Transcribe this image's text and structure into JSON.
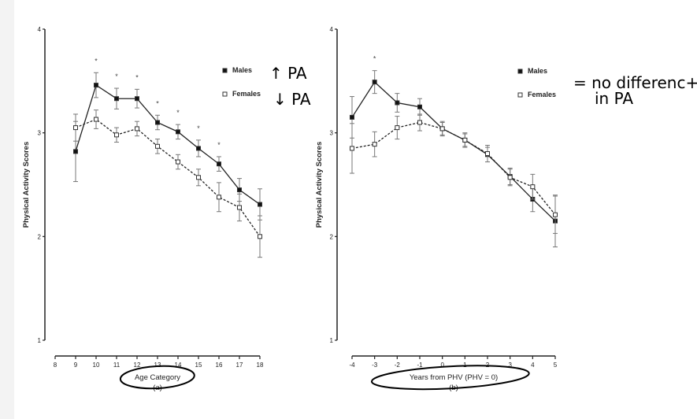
{
  "chart_data": [
    {
      "type": "line",
      "panel_label": "(a)",
      "xlabel": "Age Category",
      "ylabel": "Physical Activity Scores",
      "xlim": [
        8,
        18
      ],
      "ylim": [
        1,
        4
      ],
      "xticks": [
        8,
        9,
        10,
        11,
        12,
        13,
        14,
        15,
        16,
        17,
        18
      ],
      "yticks": [
        1,
        2,
        3,
        4
      ],
      "grid": false,
      "legend_position": "top-right",
      "x": [
        9,
        10,
        11,
        12,
        13,
        14,
        15,
        16,
        17,
        18
      ],
      "series": [
        {
          "name": "Males",
          "marker": "filled-square",
          "line": "solid",
          "values": [
            2.82,
            3.46,
            3.33,
            3.33,
            3.1,
            3.01,
            2.85,
            2.7,
            2.45,
            2.31
          ],
          "error": [
            0.29,
            0.12,
            0.1,
            0.09,
            0.07,
            0.07,
            0.08,
            0.07,
            0.11,
            0.15
          ]
        },
        {
          "name": "Females",
          "marker": "open-square",
          "line": "dashed",
          "values": [
            3.05,
            3.13,
            2.98,
            3.04,
            2.87,
            2.72,
            2.57,
            2.38,
            2.28,
            2.0
          ],
          "error": [
            0.13,
            0.09,
            0.07,
            0.07,
            0.07,
            0.07,
            0.08,
            0.14,
            0.13,
            0.2
          ]
        }
      ],
      "significance_marker": "*",
      "significant_x": [
        10,
        11,
        12,
        13,
        14,
        15,
        16
      ],
      "annotations": {
        "males": "↑ PA",
        "females": "↓ PA"
      }
    },
    {
      "type": "line",
      "panel_label": "(b)",
      "xlabel": "Years from PHV (PHV = 0)",
      "ylabel": "Physical Activity Scores",
      "xlim": [
        -4,
        5
      ],
      "ylim": [
        1,
        4
      ],
      "xticks": [
        -4,
        -3,
        -2,
        -1,
        0,
        1,
        2,
        3,
        4,
        5
      ],
      "yticks": [
        1,
        2,
        3,
        4
      ],
      "grid": false,
      "legend_position": "top-right",
      "x": [
        -4,
        -3,
        -2,
        -1,
        0,
        1,
        2,
        3,
        4,
        5
      ],
      "series": [
        {
          "name": "Males",
          "marker": "filled-square",
          "line": "solid",
          "values": [
            3.15,
            3.49,
            3.29,
            3.25,
            3.04,
            2.93,
            2.79,
            2.58,
            2.36,
            2.15
          ],
          "error": [
            0.2,
            0.11,
            0.09,
            0.08,
            0.07,
            0.07,
            0.07,
            0.08,
            0.12,
            0.25
          ]
        },
        {
          "name": "Females",
          "marker": "open-square",
          "line": "dashed",
          "values": [
            2.85,
            2.89,
            3.05,
            3.1,
            3.04,
            2.93,
            2.8,
            2.57,
            2.48,
            2.21
          ],
          "error": [
            0.24,
            0.12,
            0.11,
            0.08,
            0.06,
            0.06,
            0.08,
            0.08,
            0.12,
            0.18
          ]
        }
      ],
      "significance_marker": "*",
      "significant_x": [
        -3
      ],
      "annotations": {
        "note_line1": "= no differenc+",
        "note_line2": "in PA"
      }
    }
  ]
}
